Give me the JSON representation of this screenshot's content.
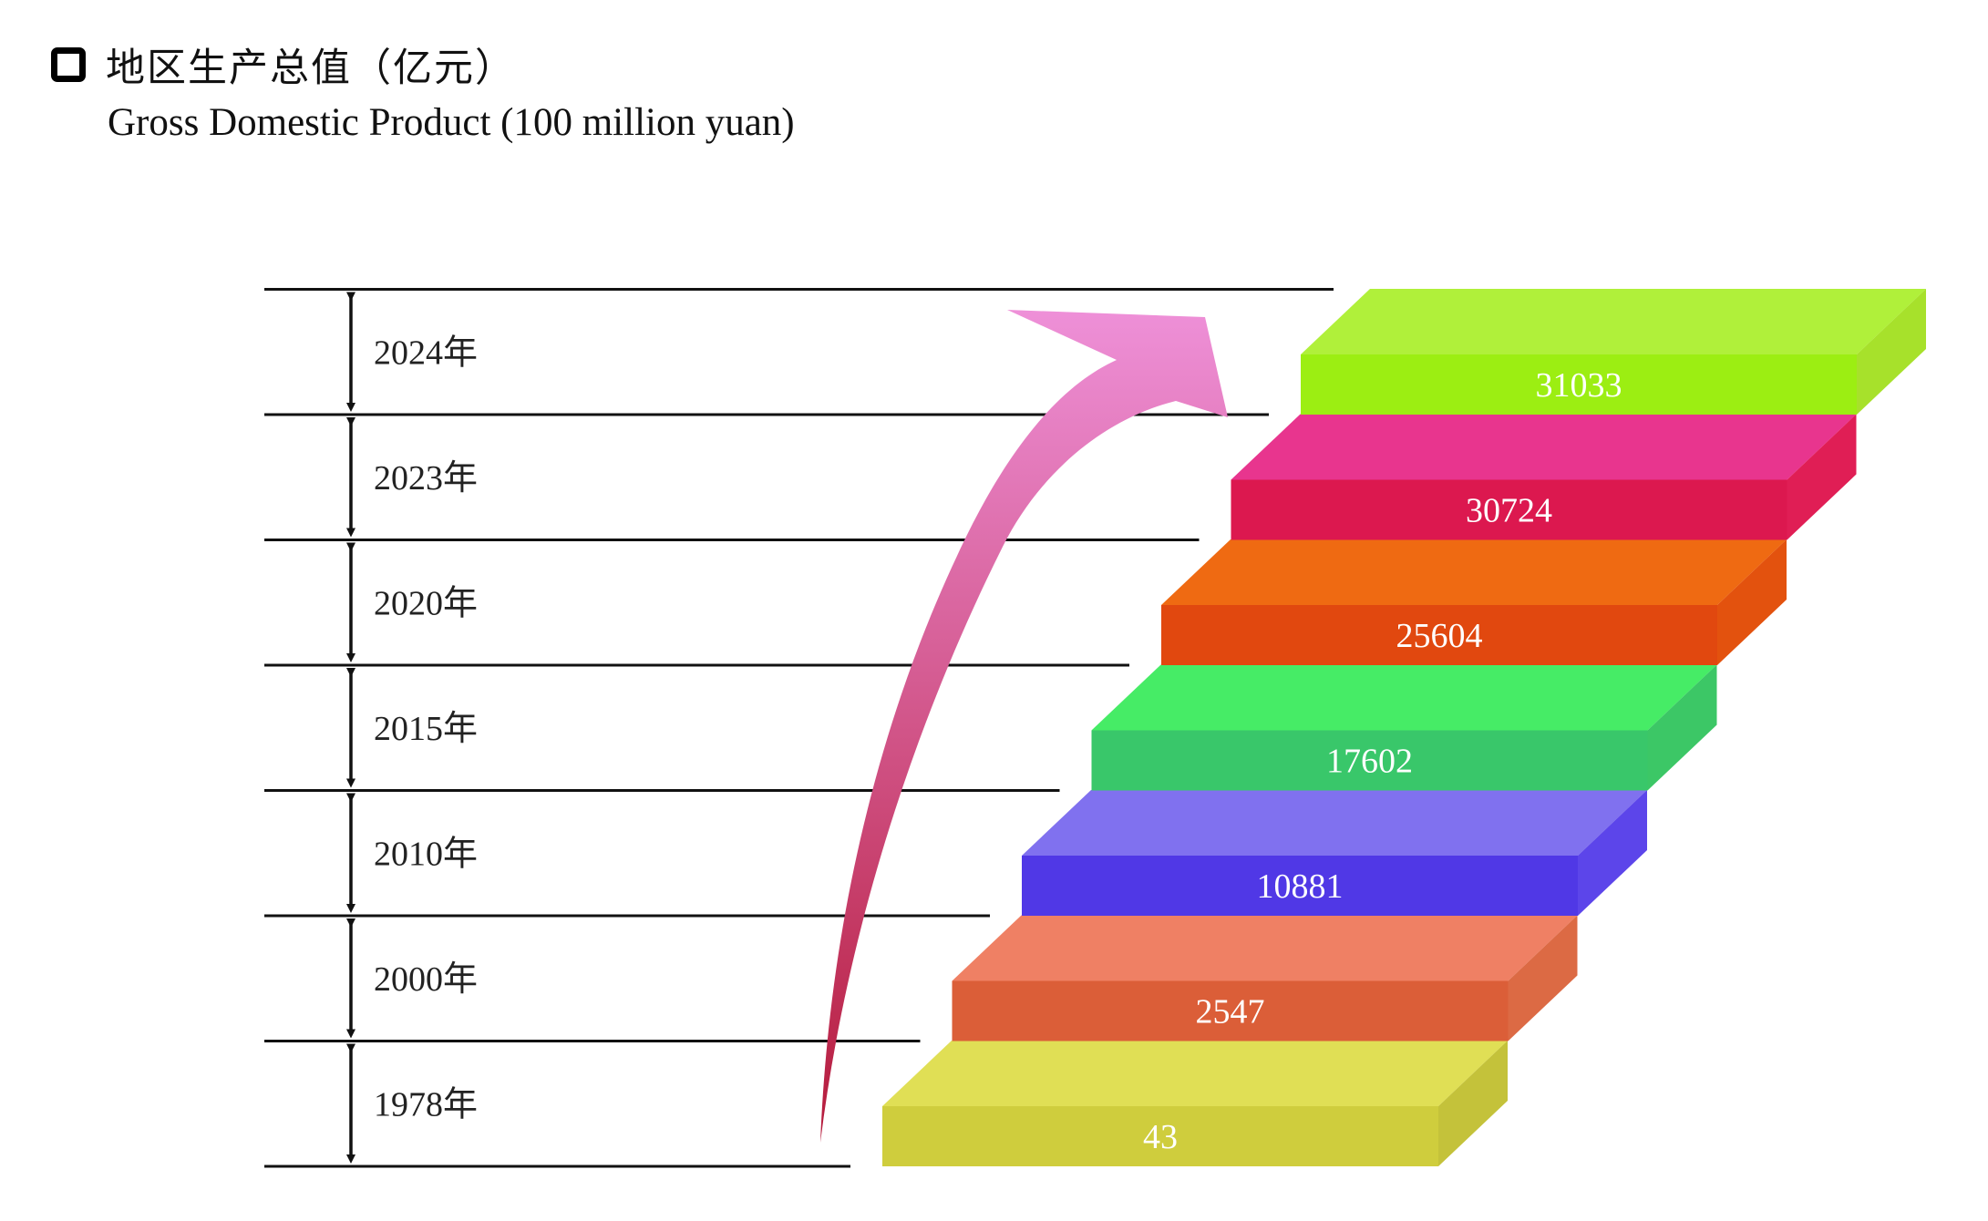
{
  "header": {
    "title_cn": "地区生产总值（亿元）",
    "title_en": "Gross Domestic Product (100 million yuan)"
  },
  "chart_data": {
    "type": "bar",
    "title": "地区生产总值（亿元）",
    "subtitle": "Gross Domestic Product (100 million yuan)",
    "categories": [
      "1978年",
      "2000年",
      "2010年",
      "2015年",
      "2020年",
      "2023年",
      "2024年"
    ],
    "values": [
      43,
      2547,
      10881,
      17602,
      25604,
      30724,
      31033
    ],
    "value_labels": [
      "43",
      "2547",
      "10881",
      "17602",
      "25604",
      "30724",
      "31033"
    ],
    "colors": [
      {
        "top": "#e0df55",
        "front": "#cfcd3d",
        "side": "#c4c23a"
      },
      {
        "top": "#ef8064",
        "front": "#db5e38",
        "side": "#dc6a44"
      },
      {
        "top": "#8071ef",
        "front": "#5038e6",
        "side": "#5c45ea"
      },
      {
        "top": "#46ec66",
        "front": "#39c76a",
        "side": "#3cc766"
      },
      {
        "top": "#ef6a12",
        "front": "#e1480f",
        "side": "#e3520e"
      },
      {
        "top": "#e8358e",
        "front": "#dc184f",
        "side": "#e01e55"
      },
      {
        "top": "#b0f03a",
        "front": "#9cee12",
        "side": "#a7e12b"
      }
    ],
    "arrow_color": {
      "top": "#ee90d8",
      "bottom": "#b51a3a"
    },
    "grid": false,
    "legend": "none"
  }
}
